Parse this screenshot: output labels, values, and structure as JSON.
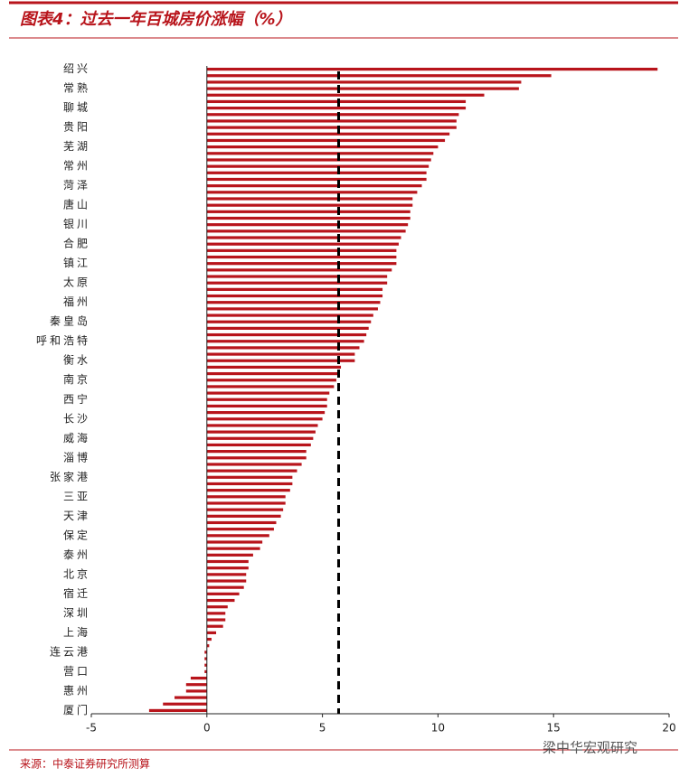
{
  "chart_data": {
    "type": "hbar",
    "title": "图表4：过去一年百城房价涨幅（%）",
    "source": "来源：中泰证券研究所测算",
    "watermark": "梁中华宏观研究",
    "color": "#b8141b",
    "reference_line": 5.7,
    "xlim": [
      -5,
      20
    ],
    "xticks": [
      -5,
      0,
      5,
      10,
      15,
      20
    ],
    "categories": [
      "绍兴",
      null,
      null,
      "常熟",
      null,
      null,
      "聊城",
      null,
      null,
      "贵阳",
      null,
      null,
      "芜湖",
      null,
      null,
      "常州",
      null,
      null,
      "菏泽",
      null,
      null,
      "唐山",
      null,
      null,
      "银川",
      null,
      null,
      "合肥",
      null,
      null,
      "镇江",
      null,
      null,
      "太原",
      null,
      null,
      "福州",
      null,
      null,
      "秦皇岛",
      null,
      null,
      "呼和浩特",
      null,
      null,
      "衡水",
      null,
      null,
      "南京",
      null,
      null,
      "西宁",
      null,
      null,
      "长沙",
      null,
      null,
      "威海",
      null,
      null,
      "淄博",
      null,
      null,
      "张家港",
      null,
      null,
      "三亚",
      null,
      null,
      "天津",
      null,
      null,
      "保定",
      null,
      null,
      "泰州",
      null,
      null,
      "北京",
      null,
      null,
      "宿迁",
      null,
      null,
      "深圳",
      null,
      null,
      "上海",
      null,
      null,
      "连云港",
      null,
      null,
      "营口",
      null,
      null,
      "惠州",
      null,
      null,
      "厦门"
    ],
    "values": [
      19.5,
      14.9,
      13.6,
      13.5,
      12.0,
      11.2,
      11.2,
      10.9,
      10.8,
      10.8,
      10.5,
      10.3,
      10.0,
      9.8,
      9.7,
      9.6,
      9.5,
      9.5,
      9.3,
      9.1,
      8.9,
      8.9,
      8.8,
      8.8,
      8.7,
      8.6,
      8.4,
      8.3,
      8.2,
      8.2,
      8.2,
      8.0,
      7.8,
      7.8,
      7.6,
      7.6,
      7.5,
      7.4,
      7.2,
      7.1,
      7.0,
      6.9,
      6.8,
      6.6,
      6.4,
      6.4,
      5.8,
      5.7,
      5.6,
      5.5,
      5.3,
      5.2,
      5.2,
      5.1,
      5.0,
      4.8,
      4.7,
      4.6,
      4.5,
      4.3,
      4.3,
      4.1,
      3.9,
      3.7,
      3.7,
      3.6,
      3.4,
      3.4,
      3.3,
      3.2,
      3.0,
      2.9,
      2.7,
      2.4,
      2.3,
      2.0,
      1.8,
      1.8,
      1.7,
      1.7,
      1.6,
      1.4,
      1.2,
      0.9,
      0.8,
      0.8,
      0.7,
      0.4,
      0.2,
      0.1,
      -0.1,
      -0.1,
      -0.1,
      -0.1,
      -0.7,
      -0.9,
      -0.9,
      -1.4,
      -1.9,
      -2.5
    ]
  }
}
